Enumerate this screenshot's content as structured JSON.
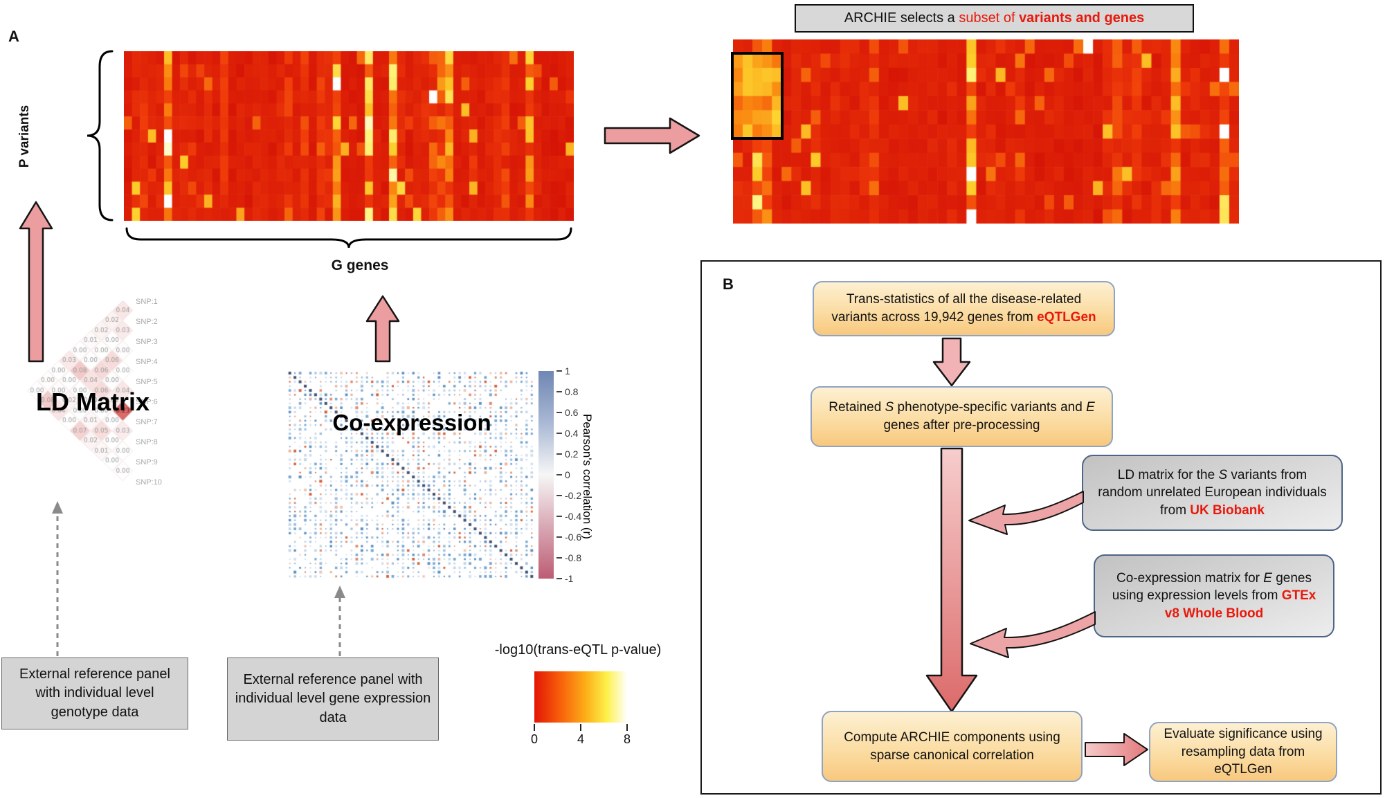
{
  "panel_a": {
    "label": "A",
    "p_variants_label": "P variants",
    "g_genes_label": "G genes",
    "heatmap_left": {
      "rows": 13,
      "cols": 56,
      "seed": 12,
      "orange": 0.03
    },
    "heatmap_right": {
      "rows": 13,
      "cols": 52,
      "seed": 99,
      "orange": 0.08,
      "highlight": {
        "row_start": 1,
        "row_end": 7,
        "col_start": 0,
        "col_end": 5
      }
    },
    "ld_matrix": {
      "title": "LD Matrix",
      "n_snps": 10,
      "seed": 5,
      "snp_labels": [
        "SNP:1",
        "SNP:2",
        "SNP:3",
        "SNP:4",
        "SNP:5",
        "SNP:6",
        "SNP:7",
        "SNP:8",
        "SNP:9",
        "SNP:10"
      ]
    },
    "coexpression": {
      "title": "Co-expression",
      "size": 48,
      "seed": 21
    },
    "pearson_colorbar": {
      "label": "Pearson's correlation (r)",
      "ticks": [
        "1",
        "0.8",
        "0.6",
        "0.4",
        "0.2",
        "0",
        "-0.2",
        "-0.4",
        "-0.6",
        "-0.8",
        "-1"
      ]
    },
    "ref_genotype_box": "External reference panel with individual level genotype data",
    "ref_expression_box": "External reference panel with individual level gene expression data",
    "eqtl_legend": {
      "title": "-log10(trans-eQTL p-value)",
      "ticks": [
        "0",
        "4",
        "8"
      ]
    }
  },
  "banner": {
    "text_black": "ARCHIE selects a ",
    "text_red": "subset of ",
    "text_red_bold": "variants and genes"
  },
  "panel_b": {
    "label": "B",
    "box_trans": {
      "t1": "Trans-statistics of all the disease-related variants across 19,942 genes from ",
      "accent": "eQTLGen"
    },
    "box_retained": {
      "t1": "Retained ",
      "i1": "S",
      "t2": " phenotype-specific variants and ",
      "i2": "E",
      "t3": " genes after pre-processing"
    },
    "box_ld": {
      "t1": "LD matrix for the ",
      "i1": "S",
      "t2": " variants from random unrelated European individuals from ",
      "accent": "UK Biobank"
    },
    "box_coexp": {
      "t1": "Co-expression matrix for ",
      "i1": "E",
      "t2": " genes using expression levels from ",
      "accent": "GTEx v8 Whole Blood"
    },
    "box_compute": "Compute ARCHIE components using sparse canonical correlation",
    "box_evaluate": "Evaluate significance using resampling data from eQTLGen"
  },
  "colors": {
    "accent_red": "#e8190c",
    "arrow_fill": "#ec9da0",
    "heat_palette": [
      "#d31006",
      "#f03c0a",
      "#fa820f",
      "#fdc828",
      "#fff578",
      "#ffffff"
    ]
  }
}
